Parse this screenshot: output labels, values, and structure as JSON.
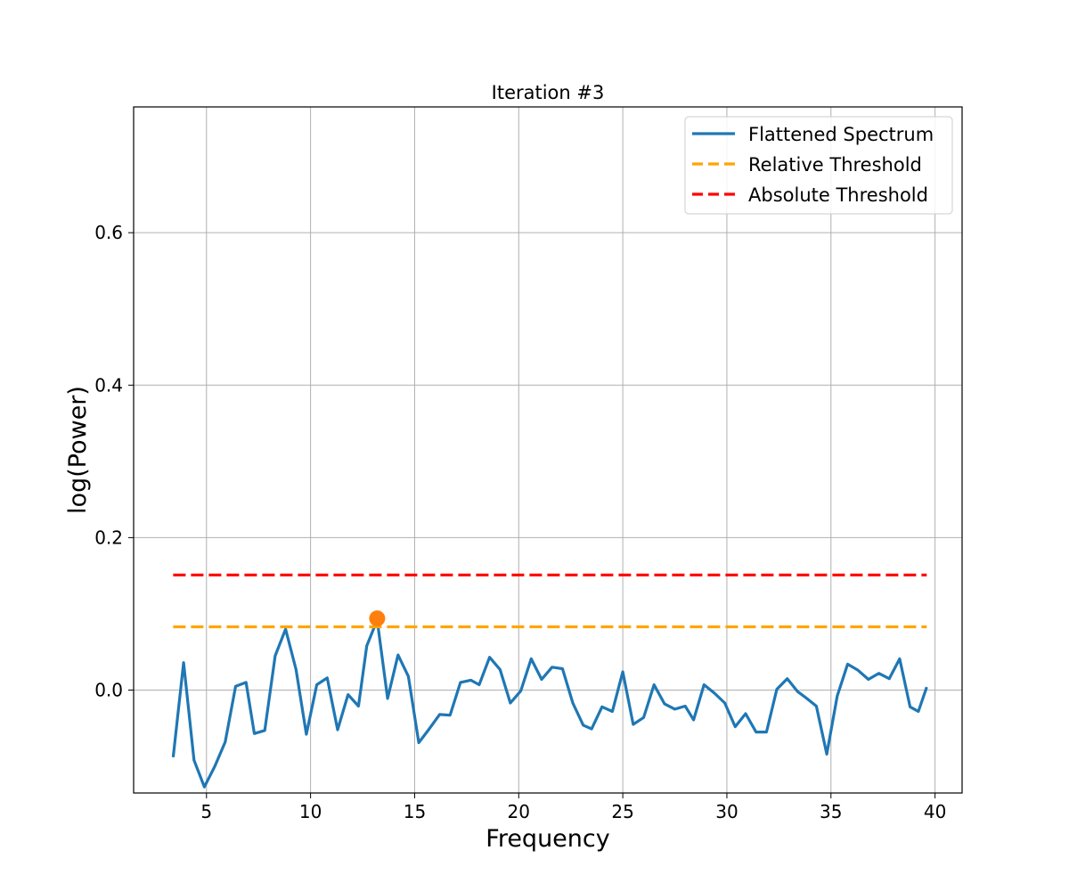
{
  "chart_data": {
    "type": "line",
    "title": "Iteration #3",
    "xlabel": "Frequency",
    "ylabel": "log(Power)",
    "xlim": [
      1.5,
      41.3
    ],
    "ylim": [
      -0.135,
      0.765
    ],
    "xticks": [
      5,
      10,
      15,
      20,
      25,
      30,
      35,
      40
    ],
    "xtick_labels": [
      "5",
      "10",
      "15",
      "20",
      "25",
      "30",
      "35",
      "40"
    ],
    "yticks": [
      0.0,
      0.2,
      0.4,
      0.6
    ],
    "ytick_labels": [
      "0.0",
      "0.2",
      "0.4",
      "0.6"
    ],
    "grid": true,
    "legend_position": "top-right",
    "series": [
      {
        "name": "Flattened Spectrum",
        "style": "solid",
        "color": "#1f77b4",
        "x": [
          3.4,
          3.9,
          4.4,
          4.9,
          5.4,
          5.9,
          6.4,
          6.9,
          7.3,
          7.8,
          8.3,
          8.8,
          9.3,
          9.8,
          10.3,
          10.8,
          11.3,
          11.8,
          12.3,
          12.7,
          13.2,
          13.7,
          14.2,
          14.7,
          15.2,
          15.7,
          16.2,
          16.7,
          17.2,
          17.7,
          18.1,
          18.6,
          19.1,
          19.6,
          20.1,
          20.6,
          21.1,
          21.6,
          22.1,
          22.6,
          23.1,
          23.5,
          24.0,
          24.5,
          25.0,
          25.5,
          26.0,
          26.5,
          27.0,
          27.5,
          28.0,
          28.4,
          28.9,
          29.4,
          29.9,
          30.4,
          30.9,
          31.4,
          31.9,
          32.4,
          32.9,
          33.4,
          33.8,
          34.3,
          34.8,
          35.3,
          35.8,
          36.3,
          36.8,
          37.3,
          37.8,
          38.3,
          38.8,
          39.2,
          39.6
        ],
        "y": [
          -0.088,
          0.036,
          -0.092,
          -0.127,
          -0.1,
          -0.068,
          0.005,
          0.01,
          -0.057,
          -0.053,
          0.045,
          0.08,
          0.027,
          -0.058,
          0.007,
          0.016,
          -0.052,
          -0.006,
          -0.021,
          0.058,
          0.092,
          -0.011,
          0.046,
          0.018,
          -0.069,
          -0.051,
          -0.032,
          -0.033,
          0.01,
          0.013,
          0.007,
          0.043,
          0.027,
          -0.017,
          -0.001,
          0.041,
          0.014,
          0.03,
          0.028,
          -0.017,
          -0.046,
          -0.051,
          -0.022,
          -0.028,
          0.024,
          -0.045,
          -0.036,
          0.007,
          -0.018,
          -0.025,
          -0.021,
          -0.039,
          0.007,
          -0.004,
          -0.017,
          -0.048,
          -0.031,
          -0.055,
          -0.055,
          0.001,
          0.015,
          -0.002,
          -0.01,
          -0.021,
          -0.084,
          -0.008,
          0.034,
          0.026,
          0.014,
          0.022,
          0.015,
          0.041,
          -0.022,
          -0.028,
          0.004
        ]
      },
      {
        "name": "Relative Threshold",
        "style": "dashed",
        "color": "#ffa500",
        "x": [
          3.4,
          39.6
        ],
        "y": [
          0.083,
          0.083
        ]
      },
      {
        "name": "Absolute Threshold",
        "style": "dashed",
        "color": "#ff0000",
        "x": [
          3.4,
          39.6
        ],
        "y": [
          0.151,
          0.151
        ]
      }
    ],
    "peak_marker": {
      "x": 13.2,
      "y": 0.094,
      "color": "#ff7f0e"
    }
  }
}
